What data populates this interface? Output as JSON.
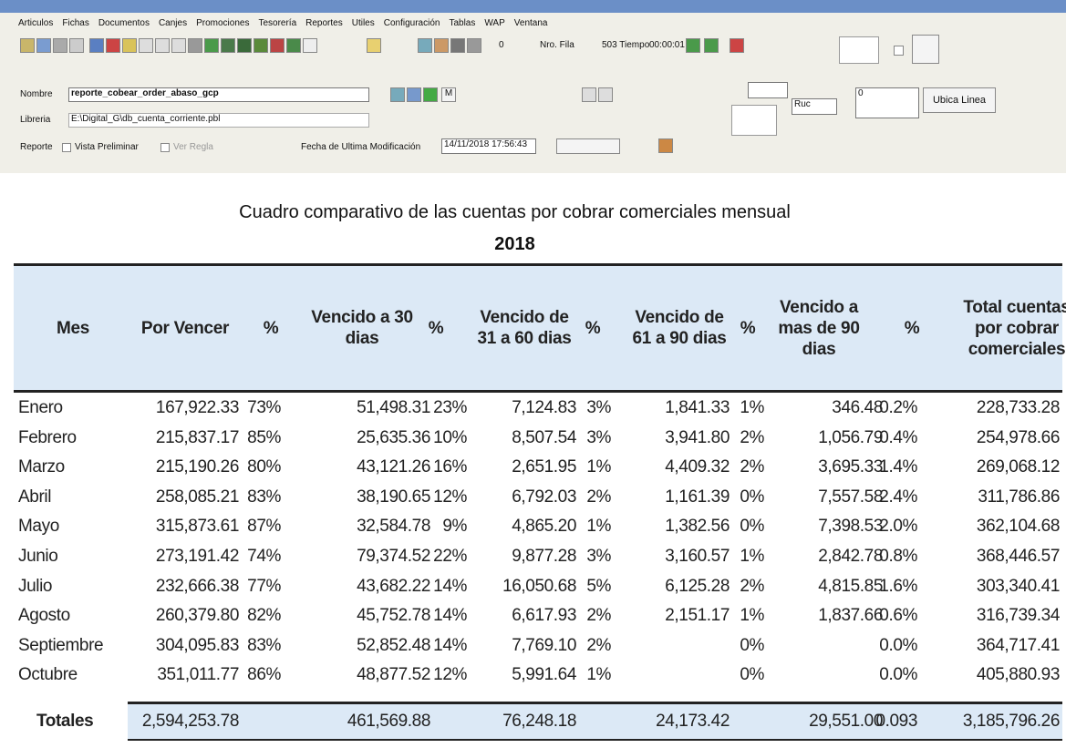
{
  "menu": [
    "Articulos",
    "Fichas",
    "Documentos",
    "Canjes",
    "Promociones",
    "Tesorería",
    "Reportes",
    "Utiles",
    "Configuración",
    "Tablas",
    "WAP",
    "Ventana"
  ],
  "toolbar": {
    "zero": "0",
    "row_label": "Nro. Fila",
    "time_label": "503 Tiempo",
    "time": "00:00:01",
    "m_button": "M"
  },
  "form": {
    "name_label": "Nombre",
    "name": "reporte_cobear_order_abaso_gcp",
    "library_label": "Libreria",
    "library": "E:\\Digital_G\\db_cuenta_corriente.pbl",
    "report_label": "Reporte",
    "preview": "Vista Preliminar",
    "ruler": "Ver Regla",
    "modified_label": "Fecha de Ultima Modificación",
    "modified": "14/11/2018 17:56:43",
    "ruc": "Ruc",
    "ruc_value": "0",
    "locate_button": "Ubica Linea"
  },
  "report": {
    "title": "Cuadro comparativo de las cuentas por cobrar comerciales mensual",
    "year": "2018",
    "table": {
      "columns": [
        "Mes",
        "Por Vencer",
        "%",
        "Vencido a 30 dias",
        "%",
        "Vencido de 31 a 60 dias",
        "%",
        "Vencido de 61 a 90 dias",
        "%",
        "Vencido a mas de 90 dias",
        "%",
        "Total cuentas por cobrar comerciales"
      ],
      "rows": [
        [
          "Enero",
          "167,922.33",
          "73%",
          "51,498.31",
          "23%",
          "7,124.83",
          "3%",
          "1,841.33",
          "1%",
          "346.48",
          "0.2%",
          "228,733.28"
        ],
        [
          "Febrero",
          "215,837.17",
          "85%",
          "25,635.36",
          "10%",
          "8,507.54",
          "3%",
          "3,941.80",
          "2%",
          "1,056.79",
          "0.4%",
          "254,978.66"
        ],
        [
          "Marzo",
          "215,190.26",
          "80%",
          "43,121.26",
          "16%",
          "2,651.95",
          "1%",
          "4,409.32",
          "2%",
          "3,695.33",
          "1.4%",
          "269,068.12"
        ],
        [
          "Abril",
          "258,085.21",
          "83%",
          "38,190.65",
          "12%",
          "6,792.03",
          "2%",
          "1,161.39",
          "0%",
          "7,557.58",
          "2.4%",
          "311,786.86"
        ],
        [
          "Mayo",
          "315,873.61",
          "87%",
          "32,584.78",
          "9%",
          "4,865.20",
          "1%",
          "1,382.56",
          "0%",
          "7,398.53",
          "2.0%",
          "362,104.68"
        ],
        [
          "Junio",
          "273,191.42",
          "74%",
          "79,374.52",
          "22%",
          "9,877.28",
          "3%",
          "3,160.57",
          "1%",
          "2,842.78",
          "0.8%",
          "368,446.57"
        ],
        [
          "Julio",
          "232,666.38",
          "77%",
          "43,682.22",
          "14%",
          "16,050.68",
          "5%",
          "6,125.28",
          "2%",
          "4,815.85",
          "1.6%",
          "303,340.41"
        ],
        [
          "Agosto",
          "260,379.80",
          "82%",
          "45,752.78",
          "14%",
          "6,617.93",
          "2%",
          "2,151.17",
          "1%",
          "1,837.66",
          "0.6%",
          "316,739.34"
        ],
        [
          "Septiembre",
          "304,095.83",
          "83%",
          "52,852.48",
          "14%",
          "7,769.10",
          "2%",
          null,
          "0%",
          null,
          "0.0%",
          "364,717.41"
        ],
        [
          "Octubre",
          "351,011.77",
          "86%",
          "48,877.52",
          "12%",
          "5,991.64",
          "1%",
          null,
          "0%",
          null,
          "0.0%",
          "405,880.93"
        ]
      ],
      "totals": [
        "Totales",
        "2,594,253.78",
        null,
        "461,569.88",
        null,
        "76,248.18",
        null,
        "24,173.42",
        null,
        "29,551.00",
        "0.093",
        "3,185,796.26"
      ]
    }
  }
}
